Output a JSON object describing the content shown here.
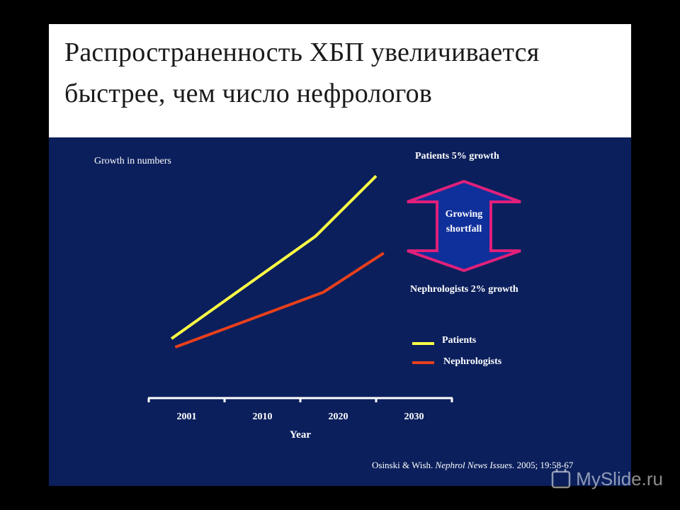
{
  "title": {
    "line1": "Распространенность ХБП увеличивается",
    "line2": "быстрее, чем число нефрологов"
  },
  "chart_data": {
    "type": "line",
    "xlabel": "Year",
    "x_ticks": [
      "2001",
      "2010",
      "2020",
      "2030"
    ],
    "ylabel": "",
    "subtitle": "Growth in numbers",
    "y_ticks_shown": false,
    "series": [
      {
        "name": "Patients",
        "color": "#ffff44",
        "points": [
          [
            0.3,
            0.06
          ],
          [
            2.2,
            0.79
          ],
          [
            3.0,
            1.22
          ]
        ]
      },
      {
        "name": "Nephrologists",
        "color": "#e8401c",
        "points": [
          [
            0.35,
            0.0
          ],
          [
            2.3,
            0.39
          ],
          [
            3.1,
            0.67
          ]
        ]
      }
    ],
    "legend": {
      "placement": "right",
      "items": [
        "Patients",
        "Nephrologists"
      ]
    },
    "annotations": {
      "patients_growth": "Patients 5% growth",
      "nephrologists_growth": "Nephrologists 2% growth",
      "gap": "Growing shortfall"
    },
    "gap_arrow_color": "#e0207a",
    "gap_arrow_fill": "#0f2f9a"
  },
  "citation": {
    "authors": "Osinski & Wish.",
    "journal": "Nephrol News Issues.",
    "ref": "2005; 19:58-67"
  },
  "watermark": {
    "text": "MySlide.ru",
    "icon": "myslide-logo-icon"
  }
}
